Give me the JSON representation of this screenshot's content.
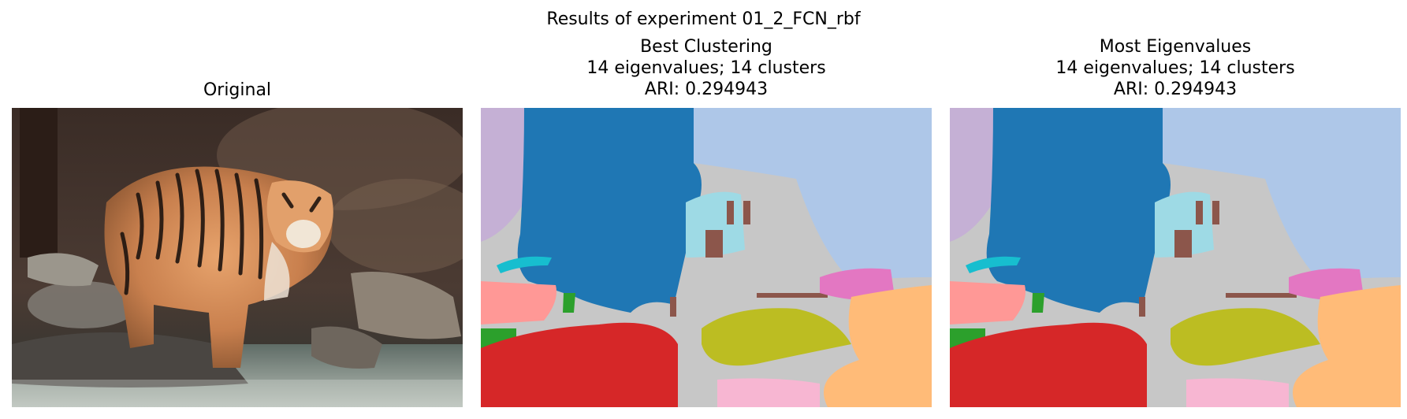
{
  "figure": {
    "suptitle": "Results of experiment 01_2_FCN_rbf"
  },
  "panels": [
    {
      "title_lines": [
        "Original"
      ]
    },
    {
      "title_lines": [
        "Best Clustering",
        "14 eigenvalues; 14 clusters",
        "ARI: 0.294943"
      ]
    },
    {
      "title_lines": [
        "Most Eigenvalues",
        "14 eigenvalues; 14 clusters",
        "ARI: 0.294943"
      ]
    }
  ],
  "images": {
    "original": "photo-of-tiger-standing-on-rocks-by-water",
    "segmentation": "cluster-label-map-14-colors"
  },
  "cluster_colors": {
    "sky_blue": "#aec7e8",
    "dark_blue": "#1f77b4",
    "lavender": "#c5b0d5",
    "gray": "#c7c7c7",
    "cyan": "#9edae5",
    "brown": "#8c564b",
    "pink_rose": "#ff9896",
    "green": "#2ca02c",
    "red": "#d62728",
    "olive": "#bcbd22",
    "magenta": "#e377c2",
    "orange_light": "#ffbb78",
    "pink_light": "#f7b6d2",
    "teal": "#17becf"
  }
}
